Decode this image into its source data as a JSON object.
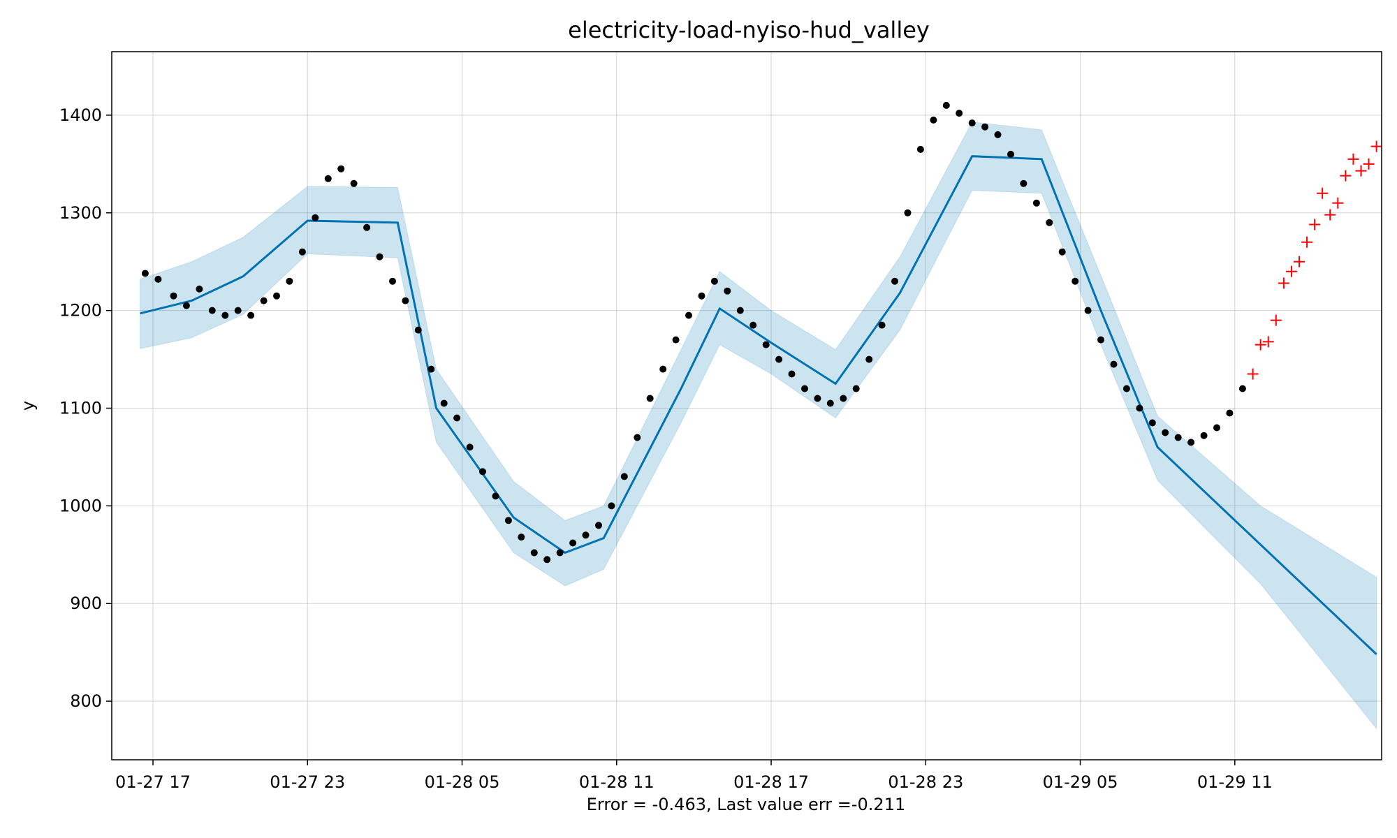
{
  "chart_data": {
    "type": "line",
    "title": "electricity-load-nyiso-hud_valley",
    "xlabel": "Error = -0.463, Last value err =-0.211",
    "ylabel": "y",
    "x_ticks": [
      "01-27 17",
      "01-27 23",
      "01-28 05",
      "01-28 11",
      "01-28 17",
      "01-28 23",
      "01-29 05",
      "01-29 11"
    ],
    "x_unit": "hours since 01-27 17:00",
    "xlim": [
      -1.6,
      47.7
    ],
    "y_ticks": [
      800,
      900,
      1000,
      1100,
      1200,
      1300,
      1400
    ],
    "ylim": [
      740,
      1465
    ],
    "grid": true,
    "colors": {
      "forecast_line": "#0072B2",
      "uncertainty_band": "#0072B2",
      "observed_points": "#000000",
      "future_points": "#ff0000"
    },
    "forecast_line": {
      "x": [
        -0.5,
        1.5,
        3.5,
        6,
        9.5,
        11,
        14,
        16,
        17.5,
        20.5,
        22,
        24,
        26.5,
        29,
        31.8,
        34.5,
        36.8,
        39,
        47.5
      ],
      "y": [
        1197,
        1210,
        1235,
        1292,
        1290,
        1100,
        988,
        952,
        967,
        1120,
        1202,
        1167,
        1125,
        1218,
        1358,
        1355,
        1200,
        1060,
        848
      ]
    },
    "uncertainty_band": {
      "x": [
        -0.5,
        1.5,
        3.5,
        6,
        9.5,
        11,
        14,
        16,
        17.5,
        20.5,
        22,
        24,
        26.5,
        29,
        31.8,
        34.5,
        36.8,
        39,
        43,
        47.5
      ],
      "upper": [
        1232,
        1250,
        1275,
        1327,
        1326,
        1140,
        1025,
        985,
        1000,
        1160,
        1240,
        1200,
        1160,
        1255,
        1393,
        1385,
        1236,
        1092,
        1000,
        927
      ],
      "lower": [
        1161,
        1172,
        1196,
        1258,
        1254,
        1065,
        952,
        918,
        935,
        1085,
        1165,
        1135,
        1090,
        1180,
        1323,
        1320,
        1165,
        1026,
        920,
        772
      ]
    },
    "observed": {
      "x": [
        -0.3,
        0.2,
        0.8,
        1.3,
        1.8,
        2.3,
        2.8,
        3.3,
        3.8,
        4.3,
        4.8,
        5.3,
        5.8,
        6.3,
        6.8,
        7.3,
        7.8,
        8.3,
        8.8,
        9.3,
        9.8,
        10.3,
        10.8,
        11.3,
        11.8,
        12.3,
        12.8,
        13.3,
        13.8,
        14.3,
        14.8,
        15.3,
        15.8,
        16.3,
        16.8,
        17.3,
        17.8,
        18.3,
        18.8,
        19.3,
        19.8,
        20.3,
        20.8,
        21.3,
        21.8,
        22.3,
        22.8,
        23.3,
        23.8,
        24.3,
        24.8,
        25.3,
        25.8,
        26.3,
        26.8,
        27.3,
        27.8,
        28.3,
        28.8,
        29.3,
        29.8,
        30.3,
        30.8,
        31.3,
        31.8,
        32.3,
        32.8,
        33.3,
        33.8,
        34.3,
        34.8,
        35.3,
        35.8,
        36.3,
        36.8,
        37.3,
        37.8,
        38.3,
        38.8,
        39.3,
        39.8,
        40.3,
        40.8,
        41.3,
        41.8,
        42.3
      ],
      "y": [
        1238,
        1232,
        1215,
        1205,
        1222,
        1200,
        1195,
        1200,
        1195,
        1210,
        1215,
        1230,
        1260,
        1295,
        1335,
        1345,
        1330,
        1285,
        1255,
        1230,
        1210,
        1180,
        1140,
        1105,
        1090,
        1060,
        1035,
        1010,
        985,
        968,
        952,
        945,
        952,
        962,
        970,
        980,
        1000,
        1030,
        1070,
        1110,
        1140,
        1170,
        1195,
        1215,
        1230,
        1220,
        1200,
        1185,
        1165,
        1150,
        1135,
        1120,
        1110,
        1105,
        1110,
        1120,
        1150,
        1185,
        1230,
        1300,
        1365,
        1395,
        1410,
        1402,
        1392,
        1388,
        1380,
        1360,
        1330,
        1310,
        1290,
        1260,
        1230,
        1200,
        1170,
        1145,
        1120,
        1100,
        1085,
        1075,
        1070,
        1065,
        1072,
        1080,
        1095,
        1120
      ]
    },
    "future": {
      "x": [
        42.7,
        43.0,
        43.3,
        43.6,
        43.9,
        44.2,
        44.5,
        44.8,
        45.1,
        45.4,
        45.7,
        46.0,
        46.3,
        46.6,
        46.9,
        47.2,
        47.5
      ],
      "y": [
        1135,
        1165,
        1168,
        1190,
        1228,
        1240,
        1250,
        1270,
        1288,
        1320,
        1298,
        1310,
        1338,
        1355,
        1343,
        1350,
        1368
      ]
    }
  }
}
